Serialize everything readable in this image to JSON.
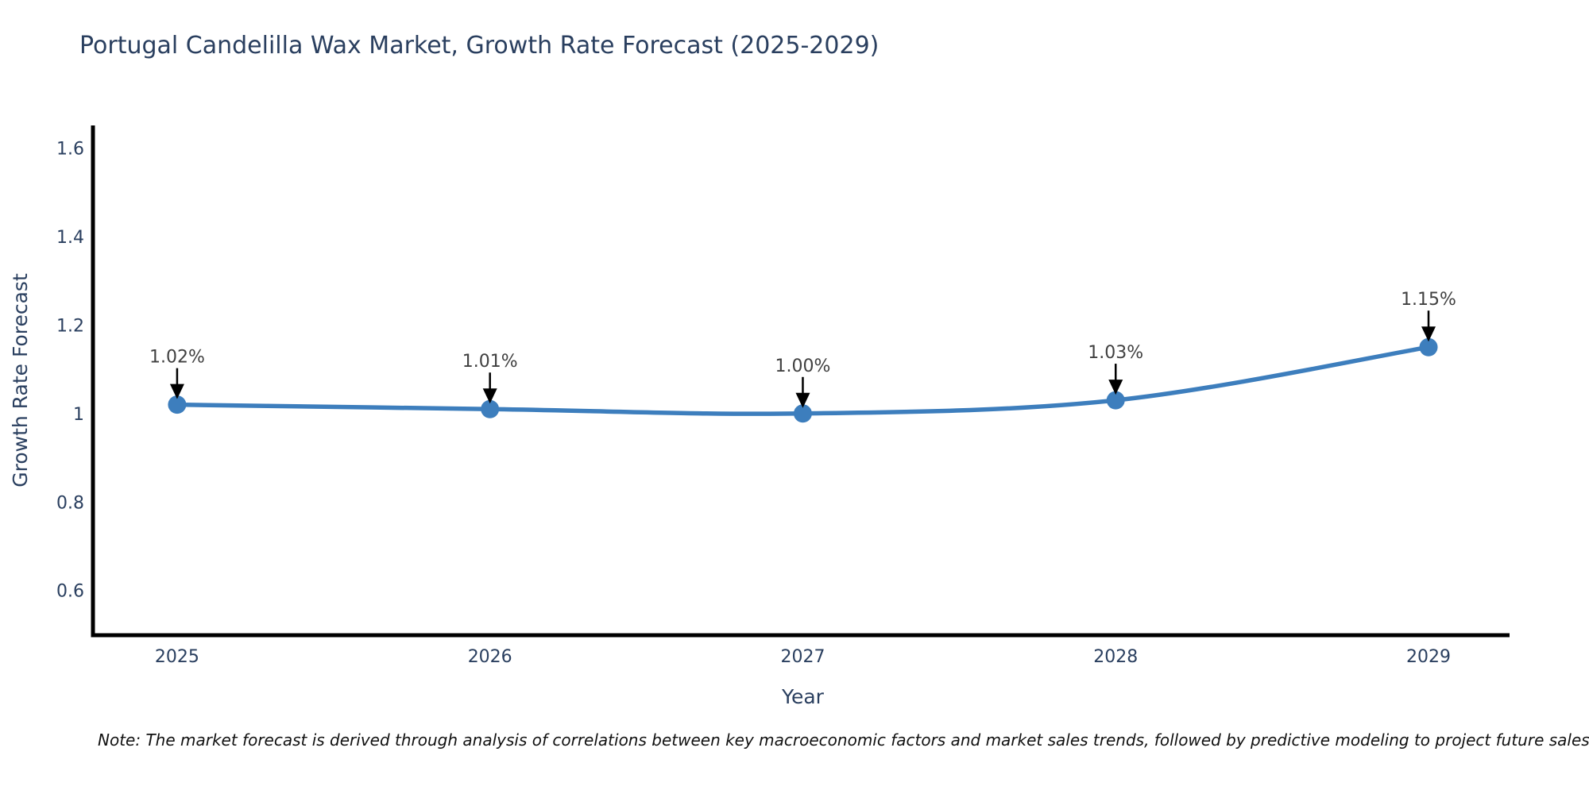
{
  "title": "Portugal Candelilla Wax Market, Growth Rate Forecast (2025-2029)",
  "note": "Note: The market forecast is derived through analysis of correlations between key macroeconomic factors and market sales trends, followed by predictive modeling to project future sales",
  "chart_data": {
    "type": "line",
    "title": "Portugal Candelilla Wax Market, Growth Rate Forecast (2025-2029)",
    "x": [
      2025,
      2026,
      2027,
      2028,
      2029
    ],
    "x_tick_labels": [
      "2025",
      "2026",
      "2027",
      "2028",
      "2029"
    ],
    "series": [
      {
        "name": "Growth Rate Forecast",
        "values": [
          1.02,
          1.01,
          1.0,
          1.03,
          1.15
        ]
      }
    ],
    "point_labels": [
      "1.02%",
      "1.01%",
      "1.00%",
      "1.03%",
      "1.15%"
    ],
    "xlabel": "Year",
    "ylabel": "Growth Rate Forecast",
    "y_ticks": [
      0.6,
      0.8,
      1,
      1.2,
      1.4,
      1.6
    ],
    "y_tick_labels": [
      "0.6",
      "0.8",
      "1",
      "1.2",
      "1.4",
      "1.6"
    ],
    "ylim": [
      0.499,
      1.651
    ],
    "xlim": [
      2024.731,
      2029.259
    ],
    "grid": false,
    "legend_position": "none",
    "line_color": "#3d7ebd",
    "marker_color": "#3d7ebd",
    "axis_color": "#000000",
    "label_color": "#2a3f5f",
    "tick_color": "#2a3f5f",
    "annotation_color": "#404040",
    "arrow_color": "#000000",
    "background_color": "#ffffff"
  }
}
